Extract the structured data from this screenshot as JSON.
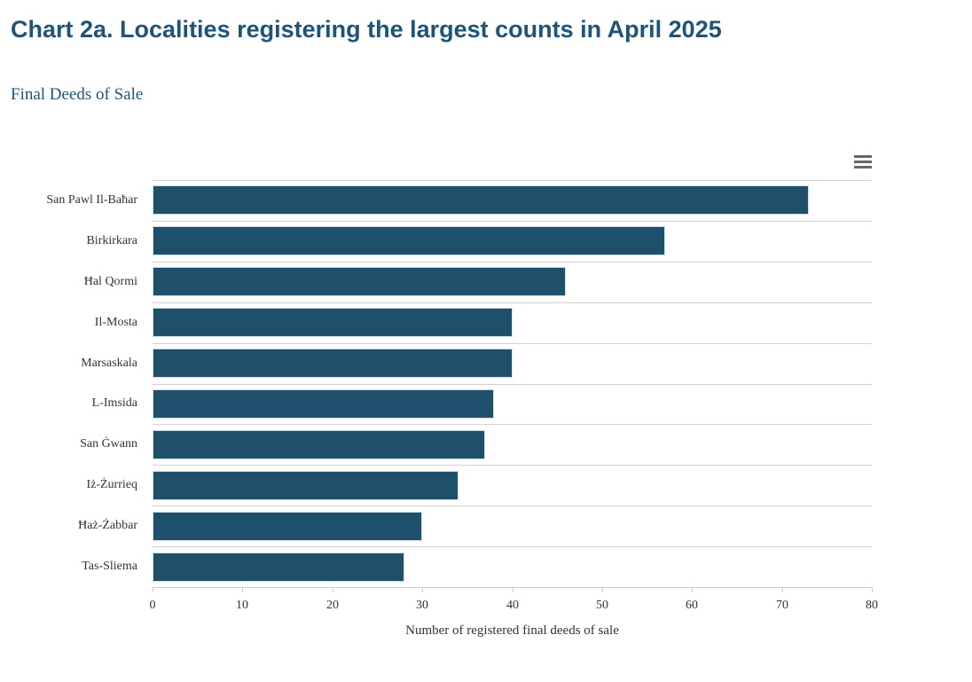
{
  "header": {
    "title": "Chart 2a. Localities registering the largest counts in April 2025",
    "subtitle": "Final Deeds of Sale"
  },
  "toolbar": {
    "context_menu_icon": "hamburger-menu-icon"
  },
  "chart_data": {
    "type": "bar",
    "orientation": "horizontal",
    "title": "Chart 2a. Localities registering the largest counts in April 2025",
    "subtitle": "Final Deeds of Sale",
    "categories": [
      "San Pawl Il-Baħar",
      "Birkirkara",
      "Ħal Qormi",
      "Il-Mosta",
      "Marsaskala",
      "L-Imsida",
      "San Ġwann",
      "Iż-Żurrieq",
      "Ħaż-Żabbar",
      "Tas-Sliema"
    ],
    "values": [
      73,
      57,
      46,
      40,
      40,
      38,
      37,
      34,
      30,
      28
    ],
    "xlabel": "Number of registered final deeds of sale",
    "ylabel": "",
    "xlim": [
      0,
      80
    ],
    "xticks": [
      0,
      10,
      20,
      30,
      40,
      50,
      60,
      70,
      80
    ],
    "grid": true,
    "legend_position": "none",
    "colors": {
      "bar_fill": "#1f506b",
      "bar_border": "#cfdde6",
      "gridline": "#d2d2d2",
      "axis_line": "#cccccc",
      "axis_text": "#333333",
      "title_text": "#1e5478",
      "menu_icon": "#666666"
    }
  }
}
